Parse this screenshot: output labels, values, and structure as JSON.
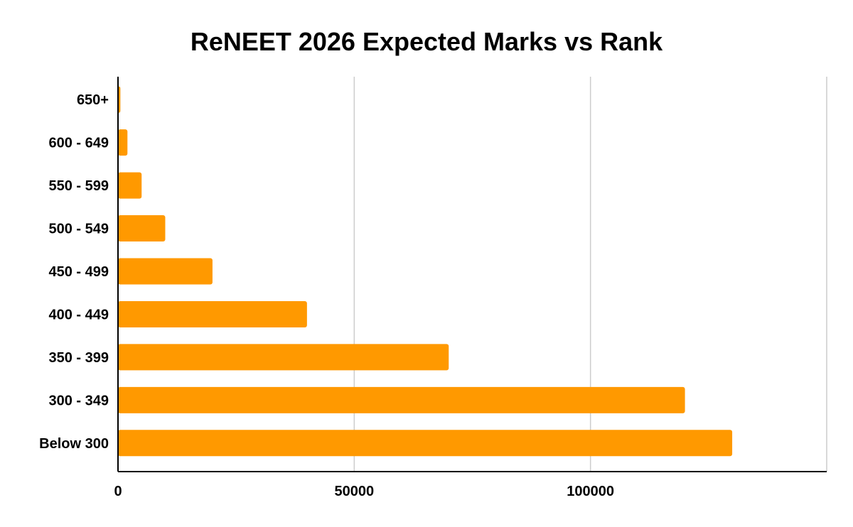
{
  "chart_data": {
    "type": "bar",
    "orientation": "horizontal",
    "title": "ReNEET 2026 Expected Marks vs Rank",
    "categories": [
      "650+",
      "600 - 649",
      "550 - 599",
      "500 - 549",
      "450 - 499",
      "400 - 449",
      "350 - 399",
      "300 - 349",
      "Below 300"
    ],
    "values": [
      500,
      2000,
      5000,
      10000,
      20000,
      40000,
      70000,
      120000,
      130000
    ],
    "xlim": [
      0,
      150000
    ],
    "xticks": [
      0,
      50000,
      100000
    ],
    "xtick_labels": [
      "0",
      "50000",
      "100000"
    ],
    "grid": true,
    "legend": "none",
    "colors": {
      "bar": "#ff9900",
      "grid": "#cccccc",
      "axis": "#000000"
    }
  }
}
